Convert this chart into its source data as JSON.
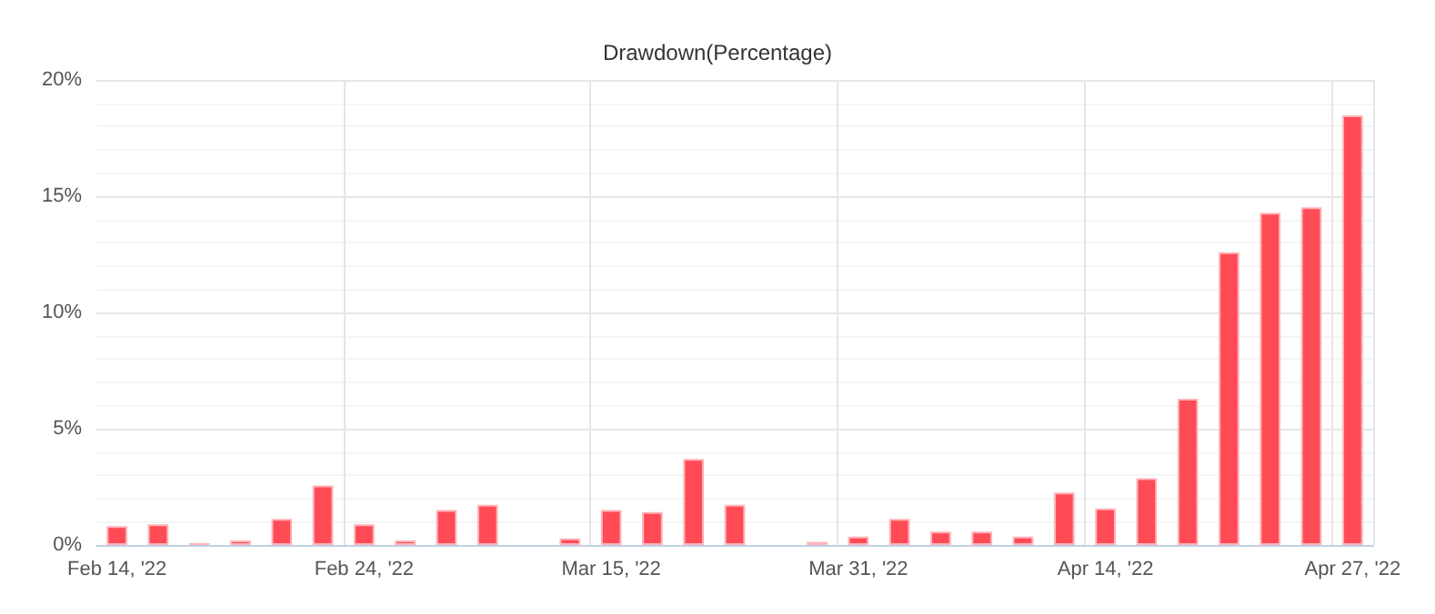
{
  "chart_data": {
    "type": "bar",
    "title": "Drawdown(Percentage)",
    "categories": [
      "Feb 14, '22",
      null,
      null,
      null,
      null,
      null,
      "Feb 24, '22",
      null,
      null,
      null,
      null,
      null,
      "Mar 15, '22",
      null,
      null,
      null,
      null,
      null,
      "Mar 31, '22",
      null,
      null,
      null,
      null,
      null,
      "Apr 14, '22",
      null,
      null,
      null,
      null,
      null,
      "Apr 27, '22"
    ],
    "values": [
      0.81,
      0.89,
      0.08,
      0.2,
      1.12,
      2.56,
      0.89,
      0.2,
      1.5,
      1.73,
      null,
      0.28,
      1.5,
      1.42,
      3.7,
      1.73,
      null,
      0.13,
      0.36,
      1.12,
      0.58,
      0.58,
      0.36,
      2.26,
      1.57,
      2.87,
      6.29,
      12.59,
      14.29,
      14.52,
      18.48
    ],
    "color": "#ff4b55",
    "ylim": [
      0,
      20
    ],
    "yticks": [
      {
        "value": 0,
        "label": "0%"
      },
      {
        "value": 5,
        "label": "5%"
      },
      {
        "value": 10,
        "label": "10%"
      },
      {
        "value": 15,
        "label": "15%"
      },
      {
        "value": 20,
        "label": "20%"
      }
    ],
    "grid": true
  }
}
